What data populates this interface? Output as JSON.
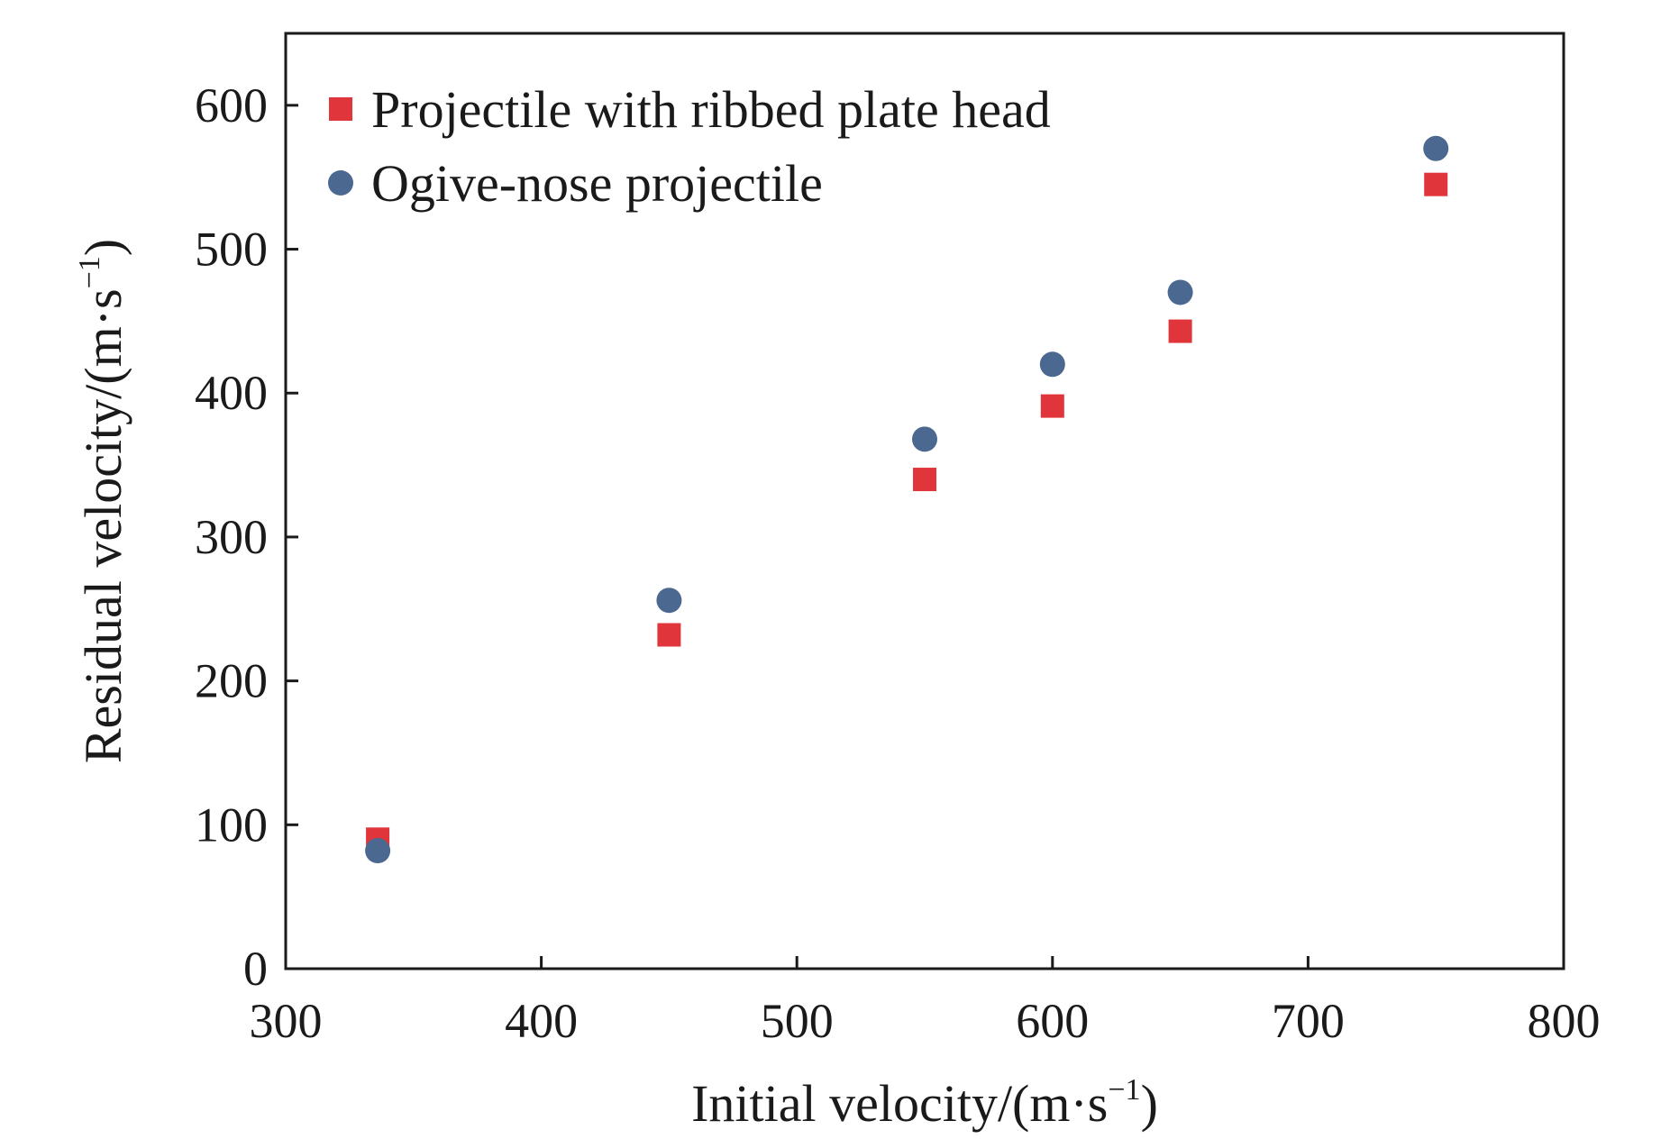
{
  "chart_data": {
    "type": "scatter",
    "title": "",
    "xlabel": {
      "main": "Initial velocity/(m·s",
      "sup": "−1",
      "end": ")"
    },
    "ylabel": {
      "main": "Residual velocity/(m·s",
      "sup": "−1",
      "end": ")"
    },
    "xlim": [
      300,
      800
    ],
    "ylim": [
      0,
      650
    ],
    "xticks": [
      300,
      400,
      500,
      600,
      700,
      800
    ],
    "yticks": [
      0,
      100,
      200,
      300,
      400,
      500,
      600
    ],
    "grid": false,
    "legend_position": "top-left",
    "series": [
      {
        "name": "Projectile with ribbed plate head",
        "marker": "square",
        "color": "#e0353b",
        "x": [
          336,
          450,
          550,
          600,
          650,
          750
        ],
        "y": [
          90,
          232,
          340,
          391,
          443,
          545
        ]
      },
      {
        "name": "Ogive-nose projectile",
        "marker": "circle",
        "color": "#4a6890",
        "x": [
          336,
          450,
          550,
          600,
          650,
          750
        ],
        "y": [
          82,
          256,
          368,
          420,
          470,
          570
        ]
      }
    ]
  }
}
